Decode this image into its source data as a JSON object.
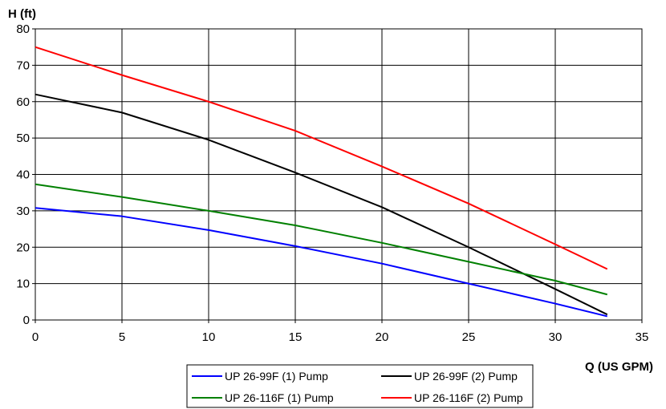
{
  "chart_data": {
    "type": "line",
    "title": "",
    "xlabel": "Q (US GPM)",
    "ylabel": "H (ft)",
    "xlim": [
      0,
      35
    ],
    "ylim": [
      0,
      80
    ],
    "xticks": [
      0,
      5,
      10,
      15,
      20,
      25,
      30,
      35
    ],
    "yticks": [
      0,
      10,
      20,
      30,
      40,
      50,
      60,
      70,
      80
    ],
    "grid": true,
    "legend_position": "bottom",
    "series": [
      {
        "name": "UP 26-99F (1) Pump",
        "color": "#0000ff",
        "x": [
          0,
          5,
          10,
          15,
          20,
          25,
          30,
          33
        ],
        "y": [
          30.8,
          28.5,
          24.7,
          20.3,
          15.5,
          10,
          4.5,
          1
        ]
      },
      {
        "name": "UP 26-99F (2) Pump",
        "color": "#000000",
        "x": [
          0,
          5,
          10,
          15,
          20,
          25,
          30,
          33
        ],
        "y": [
          62,
          57,
          49.5,
          40.5,
          31,
          20,
          8.5,
          1.5
        ]
      },
      {
        "name": "UP 26-116F (1) Pump",
        "color": "#008000",
        "x": [
          0,
          5,
          10,
          15,
          20,
          25,
          30,
          33
        ],
        "y": [
          37.3,
          33.8,
          30,
          26,
          21.2,
          16,
          10.8,
          7
        ]
      },
      {
        "name": "UP 26-116F (2) Pump",
        "color": "#ff0000",
        "x": [
          0,
          5,
          10,
          15,
          20,
          25,
          30,
          33
        ],
        "y": [
          75,
          67.3,
          60,
          52,
          42.2,
          32,
          20.8,
          14
        ]
      }
    ]
  }
}
